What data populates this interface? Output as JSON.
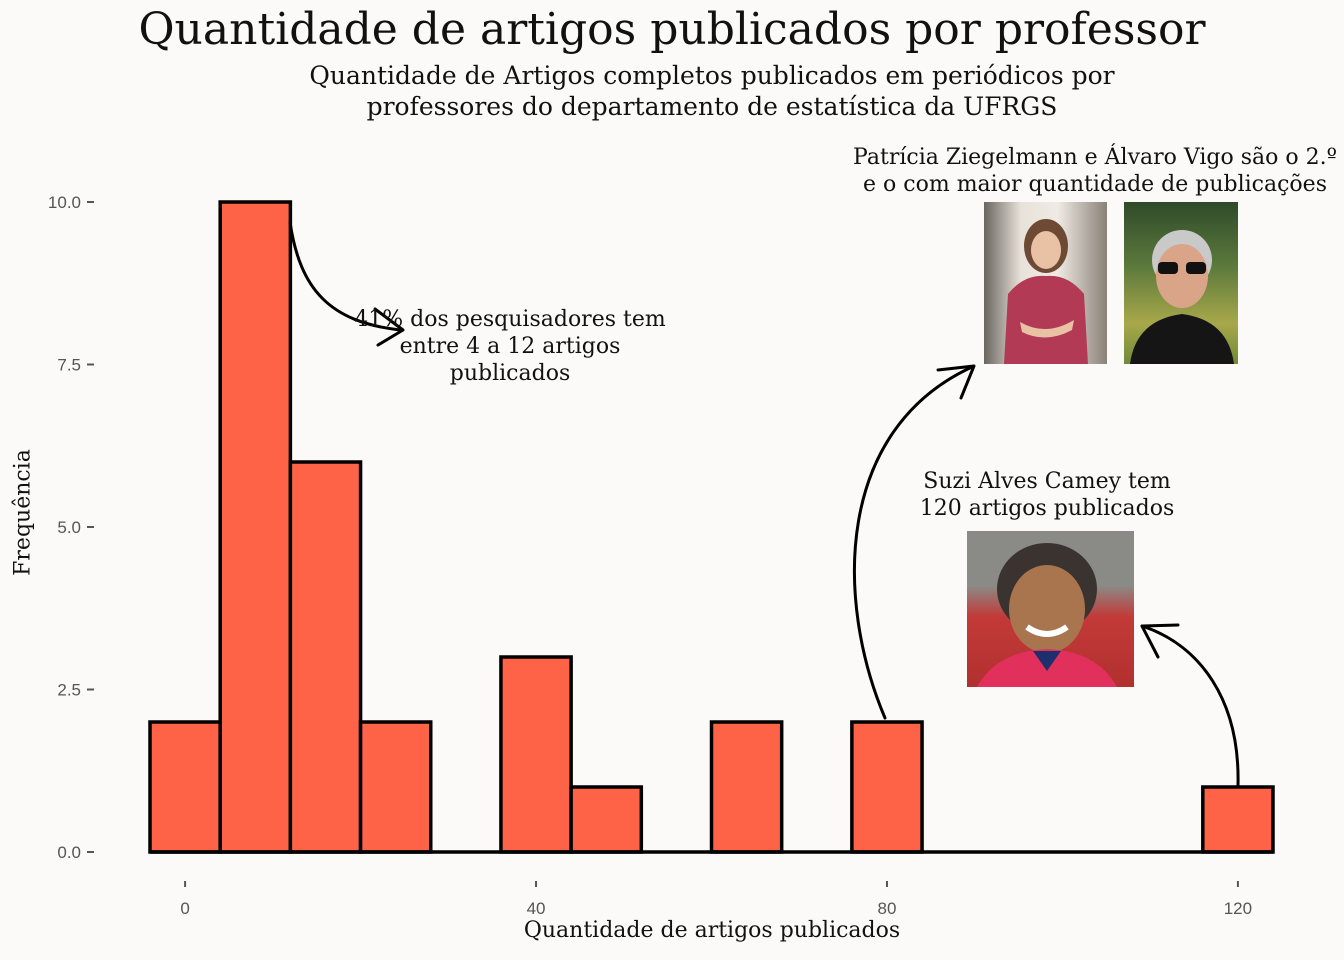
{
  "title": "Quantidade de artigos publicados por professor",
  "subtitle": "Quantidade de Artigos completos publicados em periódicos por professores do departamento de estatística da UFRGS",
  "colors": {
    "bar": "#ff6347",
    "bar_edge": "#000000",
    "background": "#fcfaf9"
  },
  "annotations": {
    "left_text": "41% dos pesquisadores tem entre 4 a 12 artigos publicados",
    "top_right_text": "Patrícia Ziegelmann e Álvaro Vigo são o 2.º e o com maior quantidade de publicações",
    "mid_right_text": "Suzi Alves Camey tem 120 artigos publicados"
  },
  "chart_data": {
    "type": "bar",
    "title": "Quantidade de artigos publicados por professor",
    "subtitle": "Quantidade de Artigos completos publicados em periódicos por professores do departamento de estatística da UFRGS",
    "xlabel": "Quantidade de artigos publicados",
    "ylabel": "Frequência",
    "xlim": [
      -4,
      124
    ],
    "ylim": [
      0,
      10
    ],
    "x_ticks": [
      0,
      40,
      80,
      120
    ],
    "y_ticks": [
      "0.0",
      "2.5",
      "5.0",
      "7.5",
      "10.0"
    ],
    "grid": false,
    "bin_width": 8,
    "bins": [
      {
        "start": -4,
        "end": 4,
        "count": 2
      },
      {
        "start": 4,
        "end": 12,
        "count": 10
      },
      {
        "start": 12,
        "end": 20,
        "count": 6
      },
      {
        "start": 20,
        "end": 28,
        "count": 2
      },
      {
        "start": 28,
        "end": 36,
        "count": 0
      },
      {
        "start": 36,
        "end": 44,
        "count": 3
      },
      {
        "start": 44,
        "end": 52,
        "count": 1
      },
      {
        "start": 52,
        "end": 60,
        "count": 0
      },
      {
        "start": 60,
        "end": 68,
        "count": 2
      },
      {
        "start": 68,
        "end": 76,
        "count": 0
      },
      {
        "start": 76,
        "end": 84,
        "count": 2
      },
      {
        "start": 84,
        "end": 92,
        "count": 0
      },
      {
        "start": 92,
        "end": 100,
        "count": 0
      },
      {
        "start": 100,
        "end": 108,
        "count": 0
      },
      {
        "start": 108,
        "end": 116,
        "count": 0
      },
      {
        "start": 116,
        "end": 124,
        "count": 1
      }
    ]
  }
}
